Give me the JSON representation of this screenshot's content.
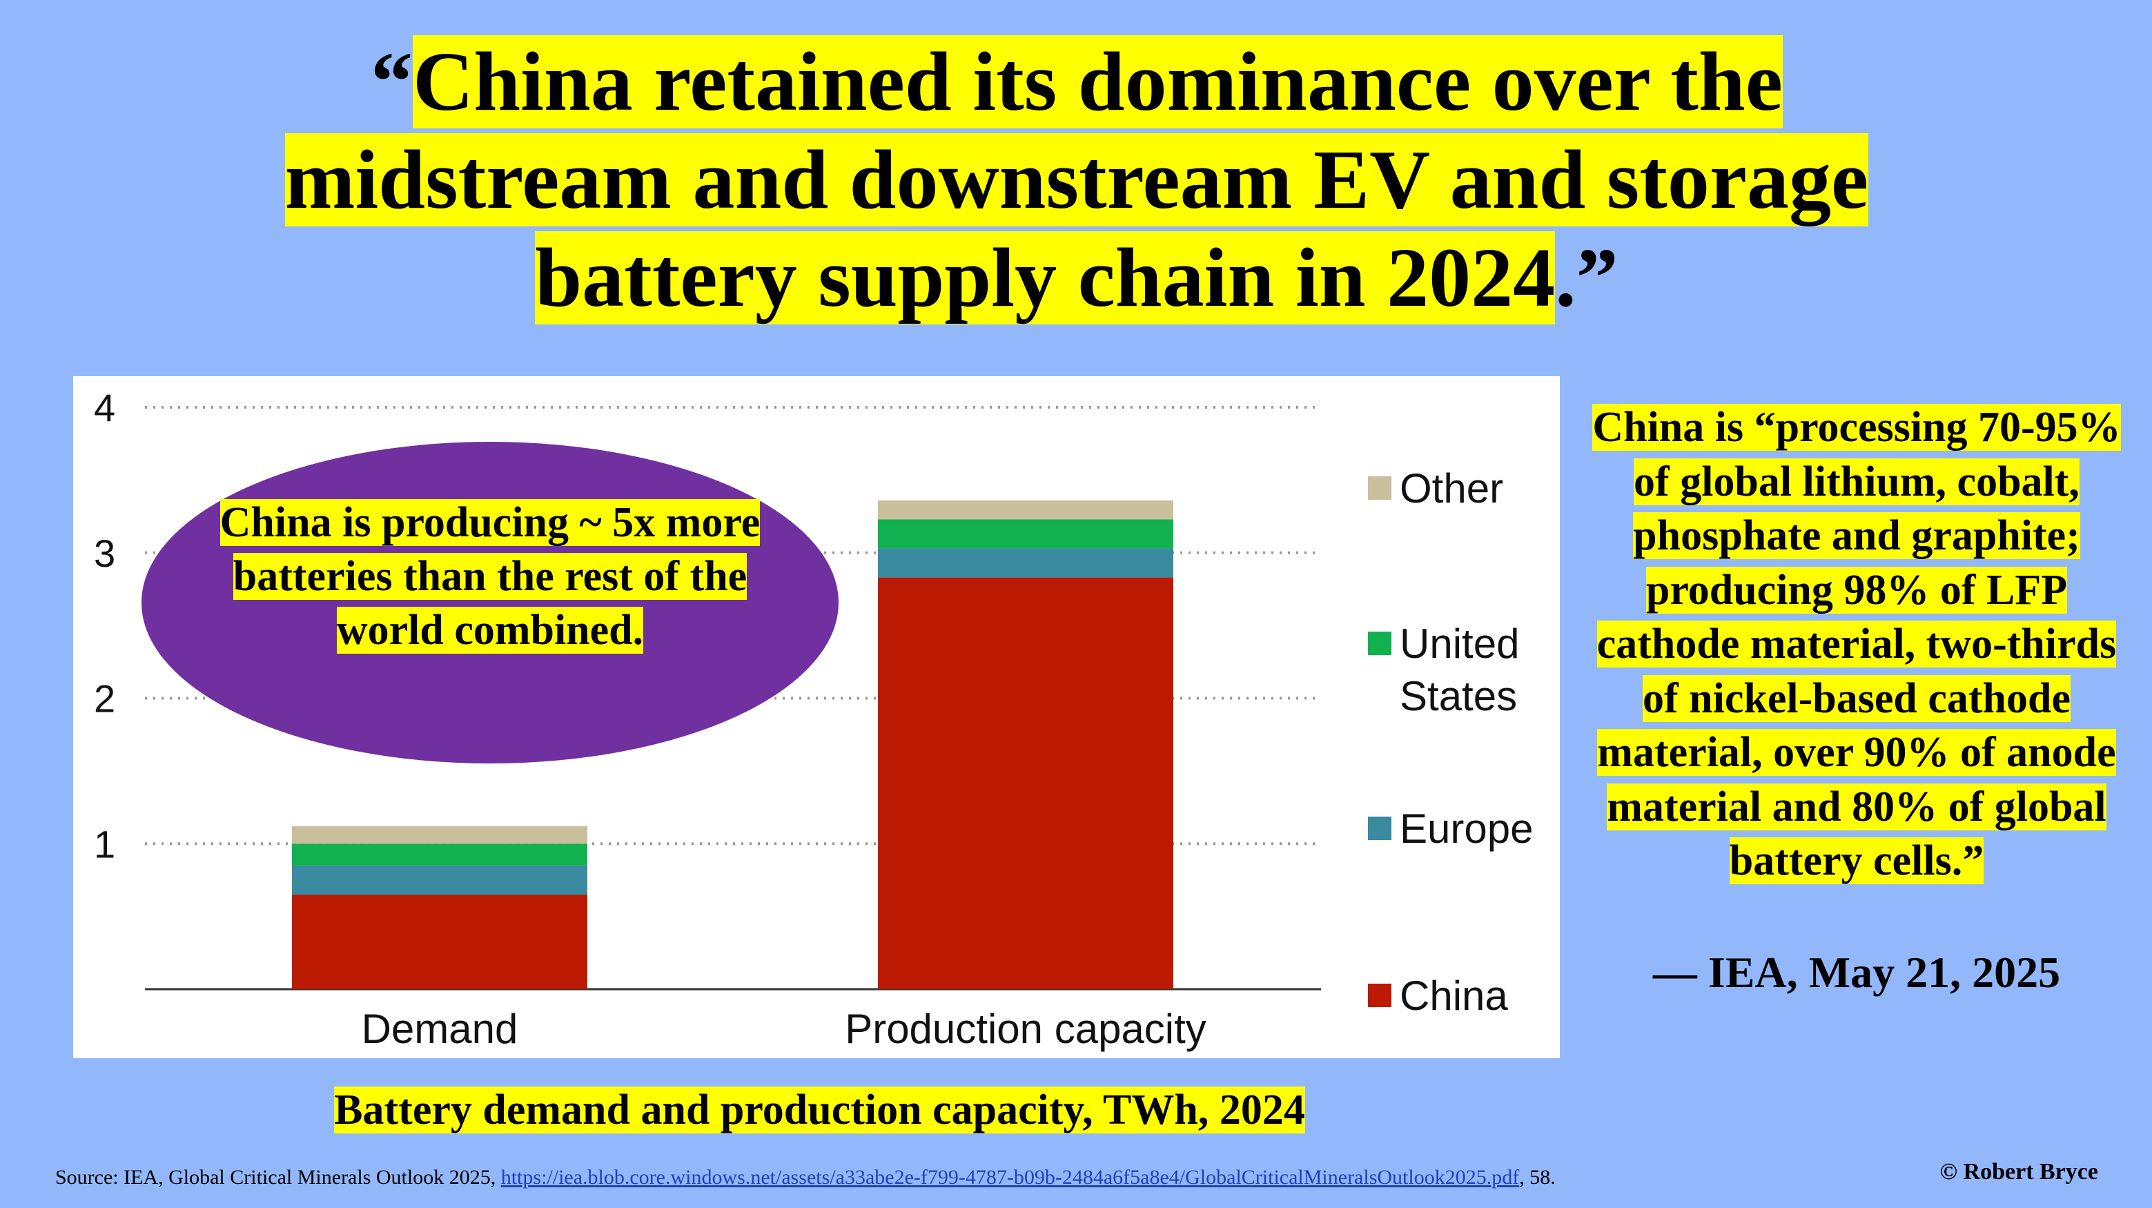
{
  "headline": {
    "open_quote": "“",
    "text": "China retained its dominance over the midstream and downstream EV and storage battery supply chain in 2024",
    "close": ".”"
  },
  "callout": {
    "text": "China is producing ~ 5x more batteries than the rest of the world combined."
  },
  "caption": "Battery demand and production capacity, TWh, 2024",
  "quote": {
    "text": "China is “processing 70-95% of global lithium, cobalt, phosphate and graphite; producing 98% of LFP cathode material, two-thirds of nickel-based cathode material, over 90% of anode material and 80% of global battery cells.”",
    "attribution": "— IEA, May 21, 2025"
  },
  "source": {
    "prefix": "Source: IEA, Global Critical Minerals Outlook 2025, ",
    "url": "https://iea.blob.core.windows.net/assets/a33abe2e-f799-4787-b09b-2484a6f5a8e4/GlobalCriticalMineralsOutlook2025.pdf",
    "suffix": ", 58."
  },
  "copyright": "© Robert Bryce",
  "colors": {
    "background": "#93b7fb",
    "highlight": "#ffff00",
    "callout": "#7030a0",
    "china": "#bb1a00",
    "europe": "#3a8aa0",
    "united_states": "#11b150",
    "other": "#c9bf9c"
  },
  "chart_data": {
    "type": "bar",
    "stacked": true,
    "title": "Battery demand and production capacity, TWh, 2024",
    "categories": [
      "Demand",
      "Production capacity"
    ],
    "series": [
      {
        "name": "China",
        "values": [
          0.65,
          2.83
        ],
        "color": "#bb1a00"
      },
      {
        "name": "Europe",
        "values": [
          0.2,
          0.2
        ],
        "color": "#3a8aa0"
      },
      {
        "name": "United States",
        "values": [
          0.15,
          0.2
        ],
        "color": "#11b150"
      },
      {
        "name": "Other",
        "values": [
          0.12,
          0.13
        ],
        "color": "#c9bf9c"
      }
    ],
    "legend_order": [
      "Other",
      "United States",
      "Europe",
      "China"
    ],
    "legend_labels": {
      "Other": [
        "Other"
      ],
      "United States": [
        "United",
        "States"
      ],
      "Europe": [
        "Europe"
      ],
      "China": [
        "China"
      ]
    },
    "legend_position": "right",
    "yticks": [
      1,
      2,
      3,
      4
    ],
    "ylim": [
      0,
      4
    ],
    "grid": true,
    "xlabel": "",
    "ylabel": ""
  }
}
